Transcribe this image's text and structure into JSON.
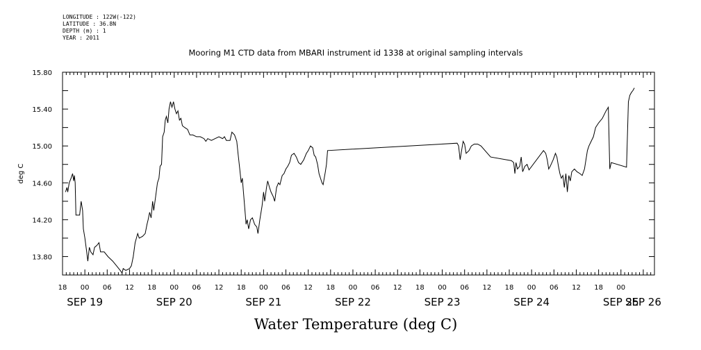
{
  "meta": {
    "longitude": "LONGITUDE : 122W(-122)",
    "latitude": "LATITUDE : 36.8N",
    "depth": "DEPTH (m) : 1",
    "year": "YEAR : 2011"
  },
  "chart_data": {
    "type": "line",
    "title": "Mooring M1 CTD data from MBARI instrument id 1338 at original sampling intervals",
    "xlabel": "Water Temperature (deg C)",
    "ylabel": "deg C",
    "xlim": [
      -6,
      153
    ],
    "ylim": [
      13.6,
      15.8
    ],
    "yticks": [
      13.8,
      14.2,
      14.6,
      15.0,
      15.4,
      15.8
    ],
    "ytick_labels": [
      "13.80",
      "14.20",
      "14.60",
      "15.00",
      "15.40",
      "15.80"
    ],
    "hour_ticks": [
      -6,
      0,
      6,
      12,
      18,
      24,
      30,
      36,
      42,
      48,
      54,
      60,
      66,
      72,
      78,
      84,
      90,
      96,
      102,
      108,
      114,
      120,
      126,
      132,
      138,
      144
    ],
    "hour_tick_labels": [
      "18",
      "00",
      "06",
      "12",
      "18",
      "00",
      "06",
      "12",
      "18",
      "00",
      "06",
      "12",
      "18",
      "00",
      "06",
      "12",
      "18",
      "00",
      "06",
      "12",
      "18",
      "00",
      "06",
      "12",
      "18",
      "00"
    ],
    "day_ticks": [
      0,
      24,
      48,
      72,
      96,
      120,
      144
    ],
    "day_tick_labels": [
      "SEP 19",
      "SEP 20",
      "SEP 21",
      "SEP 22",
      "SEP 23",
      "SEP 24",
      "SEP 25",
      "SEP 26"
    ],
    "day_tick_positions": [
      0,
      24,
      48,
      72,
      96,
      120,
      144,
      150
    ],
    "grid": false,
    "series": [
      {
        "values": [
          [
            -5.2,
            14.5
          ],
          [
            -4.8,
            14.55
          ],
          [
            -4.6,
            14.5
          ],
          [
            -4.2,
            14.6
          ],
          [
            -3.7,
            14.65
          ],
          [
            -3.3,
            14.7
          ],
          [
            -3.0,
            14.62
          ],
          [
            -2.8,
            14.68
          ],
          [
            -2.6,
            14.6
          ],
          [
            -2.4,
            14.25
          ],
          [
            -1.8,
            14.25
          ],
          [
            -1.4,
            14.25
          ],
          [
            -1.0,
            14.4
          ],
          [
            -0.6,
            14.3
          ],
          [
            -0.4,
            14.1
          ],
          [
            0.0,
            14.0
          ],
          [
            0.5,
            13.85
          ],
          [
            0.8,
            13.75
          ],
          [
            1.2,
            13.9
          ],
          [
            1.6,
            13.85
          ],
          [
            2.2,
            13.82
          ],
          [
            2.6,
            13.9
          ],
          [
            3.2,
            13.92
          ],
          [
            3.8,
            13.95
          ],
          [
            4.2,
            13.85
          ],
          [
            5.2,
            13.85
          ],
          [
            6.2,
            13.8
          ],
          [
            7.5,
            13.75
          ],
          [
            8.5,
            13.7
          ],
          [
            9.5,
            13.65
          ],
          [
            10.0,
            13.62
          ],
          [
            10.3,
            13.67
          ],
          [
            11.0,
            13.65
          ],
          [
            12.0,
            13.67
          ],
          [
            12.5,
            13.7
          ],
          [
            13.0,
            13.8
          ],
          [
            13.5,
            13.95
          ],
          [
            14.2,
            14.05
          ],
          [
            14.6,
            14.0
          ],
          [
            15.5,
            14.02
          ],
          [
            16.2,
            14.05
          ],
          [
            16.7,
            14.15
          ],
          [
            17.0,
            14.2
          ],
          [
            17.4,
            14.28
          ],
          [
            17.8,
            14.22
          ],
          [
            18.2,
            14.4
          ],
          [
            18.5,
            14.3
          ],
          [
            19.0,
            14.45
          ],
          [
            19.5,
            14.6
          ],
          [
            19.9,
            14.65
          ],
          [
            20.2,
            14.78
          ],
          [
            20.6,
            14.8
          ],
          [
            20.9,
            15.1
          ],
          [
            21.3,
            15.15
          ],
          [
            21.6,
            15.28
          ],
          [
            21.9,
            15.32
          ],
          [
            22.3,
            15.25
          ],
          [
            22.6,
            15.4
          ],
          [
            23.0,
            15.48
          ],
          [
            23.4,
            15.42
          ],
          [
            23.8,
            15.48
          ],
          [
            24.2,
            15.4
          ],
          [
            24.6,
            15.35
          ],
          [
            25.0,
            15.38
          ],
          [
            25.4,
            15.28
          ],
          [
            25.8,
            15.3
          ],
          [
            26.2,
            15.22
          ],
          [
            26.8,
            15.2
          ],
          [
            27.6,
            15.18
          ],
          [
            28.2,
            15.12
          ],
          [
            29.0,
            15.12
          ],
          [
            30.0,
            15.1
          ],
          [
            31.0,
            15.1
          ],
          [
            32.0,
            15.08
          ],
          [
            32.5,
            15.05
          ],
          [
            33.0,
            15.08
          ],
          [
            34.0,
            15.06
          ],
          [
            35.0,
            15.08
          ],
          [
            36.0,
            15.1
          ],
          [
            37.0,
            15.08
          ],
          [
            37.5,
            15.1
          ],
          [
            38.0,
            15.06
          ],
          [
            39.0,
            15.06
          ],
          [
            39.5,
            15.15
          ],
          [
            40.2,
            15.12
          ],
          [
            40.8,
            15.05
          ],
          [
            41.2,
            14.9
          ],
          [
            41.6,
            14.75
          ],
          [
            42.0,
            14.6
          ],
          [
            42.3,
            14.65
          ],
          [
            42.6,
            14.5
          ],
          [
            43.0,
            14.3
          ],
          [
            43.3,
            14.15
          ],
          [
            43.6,
            14.2
          ],
          [
            44.0,
            14.1
          ],
          [
            44.5,
            14.2
          ],
          [
            45.0,
            14.22
          ],
          [
            45.6,
            14.15
          ],
          [
            46.2,
            14.12
          ],
          [
            46.5,
            14.05
          ],
          [
            47.0,
            14.2
          ],
          [
            47.6,
            14.35
          ],
          [
            48.0,
            14.5
          ],
          [
            48.3,
            14.4
          ],
          [
            48.8,
            14.55
          ],
          [
            49.1,
            14.62
          ],
          [
            49.6,
            14.55
          ],
          [
            50.0,
            14.5
          ],
          [
            50.6,
            14.45
          ],
          [
            51.0,
            14.4
          ],
          [
            51.5,
            14.55
          ],
          [
            52.0,
            14.6
          ],
          [
            52.4,
            14.58
          ],
          [
            53.0,
            14.68
          ],
          [
            53.5,
            14.7
          ],
          [
            54.0,
            14.75
          ],
          [
            54.5,
            14.78
          ],
          [
            55.0,
            14.82
          ],
          [
            55.5,
            14.9
          ],
          [
            56.2,
            14.92
          ],
          [
            56.8,
            14.88
          ],
          [
            57.4,
            14.82
          ],
          [
            58.0,
            14.8
          ],
          [
            58.8,
            14.85
          ],
          [
            59.5,
            14.92
          ],
          [
            60.0,
            14.95
          ],
          [
            60.6,
            15.0
          ],
          [
            61.2,
            14.98
          ],
          [
            61.6,
            14.9
          ],
          [
            62.0,
            14.88
          ],
          [
            62.5,
            14.8
          ],
          [
            62.9,
            14.7
          ],
          [
            63.3,
            14.65
          ],
          [
            63.7,
            14.6
          ],
          [
            64.0,
            14.58
          ],
          [
            64.3,
            14.65
          ],
          [
            64.6,
            14.72
          ],
          [
            64.9,
            14.8
          ],
          [
            65.2,
            14.95
          ],
          [
            100.0,
            15.03
          ],
          [
            100.4,
            15.0
          ],
          [
            100.8,
            14.85
          ],
          [
            101.2,
            14.95
          ],
          [
            101.6,
            15.05
          ],
          [
            102.0,
            15.02
          ],
          [
            102.4,
            14.92
          ],
          [
            103.2,
            14.95
          ],
          [
            103.8,
            15.0
          ],
          [
            104.6,
            15.02
          ],
          [
            105.5,
            15.02
          ],
          [
            106.4,
            15.0
          ],
          [
            109.0,
            14.88
          ],
          [
            114.6,
            14.84
          ],
          [
            115.2,
            14.82
          ],
          [
            115.5,
            14.7
          ],
          [
            115.8,
            14.82
          ],
          [
            116.2,
            14.75
          ],
          [
            116.8,
            14.78
          ],
          [
            117.2,
            14.88
          ],
          [
            117.6,
            14.72
          ],
          [
            118.2,
            14.78
          ],
          [
            118.8,
            14.8
          ],
          [
            119.3,
            14.74
          ],
          [
            123.2,
            14.95
          ],
          [
            123.8,
            14.92
          ],
          [
            124.2,
            14.85
          ],
          [
            124.6,
            14.75
          ],
          [
            125.0,
            14.78
          ],
          [
            125.8,
            14.85
          ],
          [
            126.4,
            14.92
          ],
          [
            126.8,
            14.88
          ],
          [
            127.2,
            14.78
          ],
          [
            127.6,
            14.7
          ],
          [
            128.0,
            14.65
          ],
          [
            128.4,
            14.68
          ],
          [
            128.8,
            14.55
          ],
          [
            129.2,
            14.7
          ],
          [
            129.6,
            14.5
          ],
          [
            130.0,
            14.68
          ],
          [
            130.4,
            14.62
          ],
          [
            130.8,
            14.72
          ],
          [
            131.5,
            14.75
          ],
          [
            132.2,
            14.72
          ],
          [
            133.0,
            14.7
          ],
          [
            133.6,
            14.68
          ],
          [
            134.2,
            14.75
          ],
          [
            134.6,
            14.85
          ],
          [
            135.0,
            14.95
          ],
          [
            135.4,
            15.0
          ],
          [
            136.0,
            15.05
          ],
          [
            136.6,
            15.1
          ],
          [
            137.2,
            15.2
          ],
          [
            138.0,
            15.25
          ],
          [
            139.0,
            15.3
          ],
          [
            140.0,
            15.38
          ],
          [
            140.6,
            15.42
          ],
          [
            141.0,
            14.75
          ],
          [
            141.4,
            14.82
          ],
          [
            145.5,
            14.77
          ],
          [
            146.0,
            15.48
          ],
          [
            146.4,
            15.55
          ],
          [
            146.8,
            15.58
          ],
          [
            147.2,
            15.6
          ],
          [
            147.6,
            15.63
          ]
        ]
      }
    ]
  }
}
